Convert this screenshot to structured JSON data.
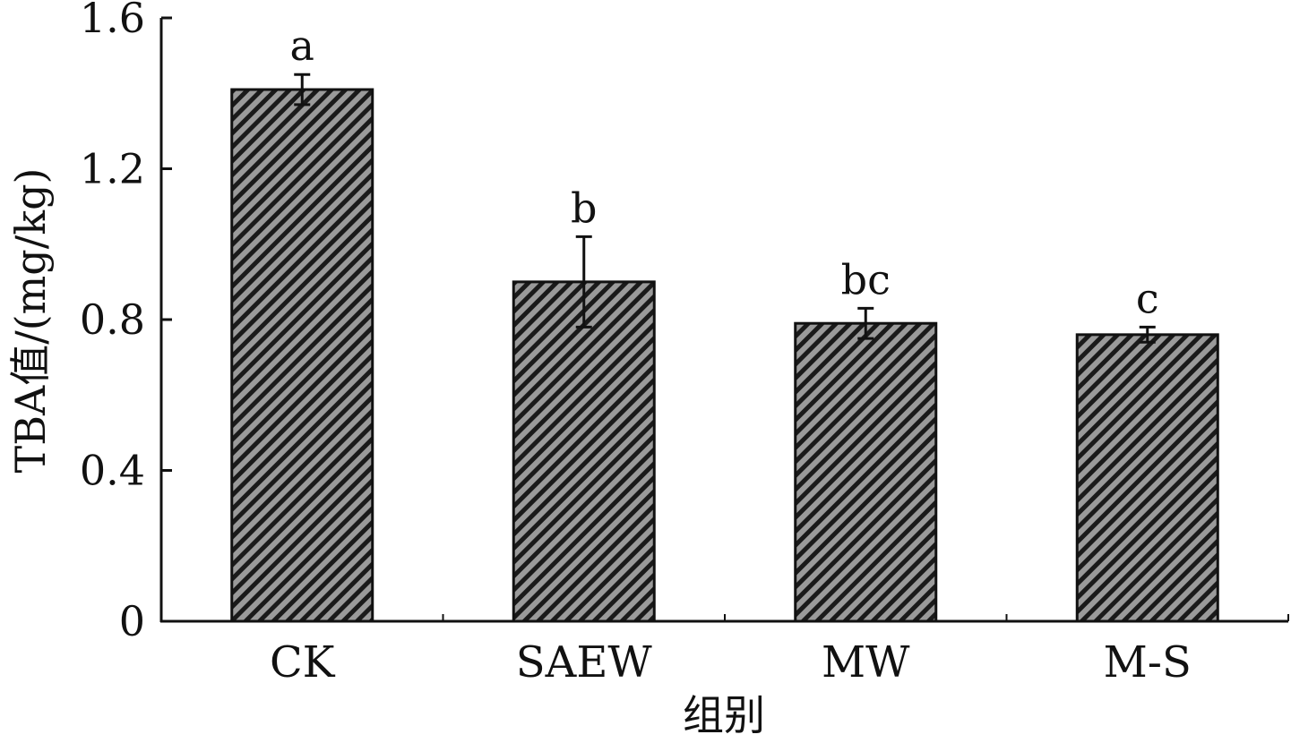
{
  "chart_data": {
    "type": "bar",
    "title": "",
    "xlabel": "组别",
    "ylabel": "TBA值/(mg/kg)",
    "ylim": [
      0,
      1.6
    ],
    "yticks": [
      "0",
      "0.4",
      "0.8",
      "1.2",
      "1.6"
    ],
    "yticks_values": [
      0,
      0.4,
      0.8,
      1.2,
      1.6
    ],
    "categories": [
      "CK",
      "SAEW",
      "MW",
      "M-S"
    ],
    "values": [
      1.41,
      0.9,
      0.79,
      0.76
    ],
    "errors": [
      0.04,
      0.12,
      0.04,
      0.02
    ],
    "significance": [
      "a",
      "b",
      "bc",
      "c"
    ],
    "grid": false,
    "legend": "none",
    "bar_fill": "diagonal-hatch",
    "colors": {
      "bar_fill": "#9a9a9a",
      "hatch": "#1a1a1a",
      "axis": "#111111"
    }
  }
}
